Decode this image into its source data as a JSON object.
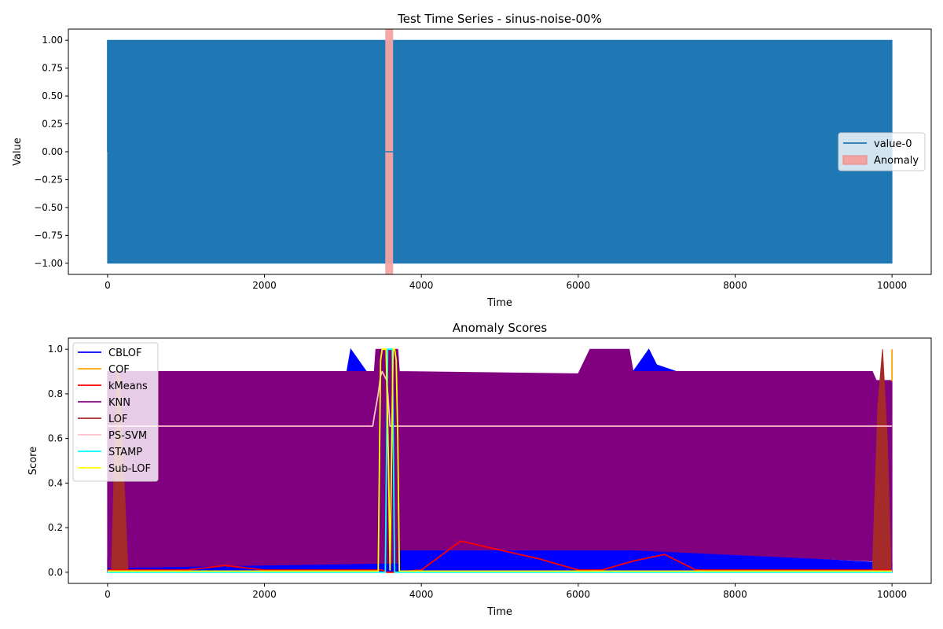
{
  "chart_data": [
    {
      "type": "line",
      "title": "Test Time Series - sinus-noise-00%",
      "xlabel": "Time",
      "ylabel": "Value",
      "xlim": [
        -500,
        10500
      ],
      "ylim": [
        -1.1,
        1.1
      ],
      "xticks": [
        0,
        2000,
        4000,
        6000,
        8000,
        10000
      ],
      "xtick_labels": [
        "0",
        "2000",
        "4000",
        "6000",
        "8000",
        "10000"
      ],
      "yticks": [
        -1.0,
        -0.75,
        -0.5,
        -0.25,
        0.0,
        0.25,
        0.5,
        0.75,
        1.0
      ],
      "ytick_labels": [
        "−1.00",
        "−0.75",
        "−0.50",
        "−0.25",
        "0.00",
        "0.25",
        "0.50",
        "0.75",
        "1.00"
      ],
      "legend_position": "center-right",
      "grid": false,
      "series": [
        {
          "name": "value-0",
          "color": "#1f77b4",
          "style": "dense oscillation between approx -1 and 1 (appears as filled band)",
          "x": [
            0,
            3540,
            3640,
            10000
          ],
          "upper": [
            1.0,
            1.0,
            1.0,
            1.0
          ],
          "lower": [
            -1.0,
            -1.0,
            -1.0,
            -1.0
          ],
          "flat_segment": {
            "x": [
              3540,
              3640
            ],
            "y": 0.0
          }
        }
      ],
      "shaded_regions": [
        {
          "name": "Anomaly",
          "color": "#f4a3a3",
          "x": [
            3540,
            3640
          ]
        }
      ]
    },
    {
      "type": "line",
      "title": "Anomaly Scores",
      "xlabel": "Time",
      "ylabel": "Score",
      "xlim": [
        -500,
        10500
      ],
      "ylim": [
        -0.05,
        1.05
      ],
      "xticks": [
        0,
        2000,
        4000,
        6000,
        8000,
        10000
      ],
      "xtick_labels": [
        "0",
        "2000",
        "4000",
        "6000",
        "8000",
        "10000"
      ],
      "yticks": [
        0.0,
        0.2,
        0.4,
        0.6,
        0.8,
        1.0
      ],
      "ytick_labels": [
        "0.0",
        "0.2",
        "0.4",
        "0.6",
        "0.8",
        "1.0"
      ],
      "legend_position": "top-left",
      "grid": false,
      "series": [
        {
          "name": "CBLOF",
          "color": "#0000ff",
          "bands": [
            {
              "x": [
                0,
                1000,
                2000,
                3000,
                3500,
                3550,
                3650,
                4000,
                5000,
                6000,
                7000,
                8000,
                9000,
                10000
              ],
              "upper": [
                0.06,
                0.03,
                0.06,
                0.08,
                0.11,
                0.11,
                0.11,
                0.11,
                0.14,
                0.12,
                0.11,
                0.09,
                0.06,
                0.04
              ],
              "lower": [
                0.0,
                0.0,
                0.0,
                0.0,
                0.0,
                0.0,
                0.0,
                0.0,
                0.0,
                0.0,
                0.0,
                0.0,
                0.0,
                0.0
              ]
            },
            {
              "x": [
                2750,
                3050,
                3100,
                3300,
                3400
              ],
              "upper": [
                0.9,
                0.9,
                1.0,
                0.9,
                0.9
              ],
              "lower": [
                0.9,
                0.9,
                0.9,
                0.9,
                0.9
              ]
            },
            {
              "x": [
                6600,
                6700,
                6900,
                7000,
                7250
              ],
              "upper": [
                0.9,
                0.9,
                1.0,
                0.93,
                0.9
              ],
              "lower": [
                0.9,
                0.9,
                0.9,
                0.9,
                0.9
              ]
            }
          ]
        },
        {
          "name": "COF",
          "color": "#ffa500",
          "x": [
            9990,
            10000,
            10000
          ],
          "y": [
            0.86,
            0.86,
            1.0
          ]
        },
        {
          "name": "kMeans",
          "color": "#ff0000",
          "x": [
            0,
            500,
            1000,
            1500,
            2000,
            2500,
            3000,
            3500,
            3560,
            3600,
            3640,
            4000,
            4500,
            5000,
            5500,
            6000,
            6300,
            6700,
            7100,
            7500,
            8000,
            9000,
            10000
          ],
          "y": [
            0.01,
            0.01,
            0.01,
            0.03,
            0.01,
            0.01,
            0.01,
            0.01,
            0.0,
            0.0,
            0.0,
            0.01,
            0.14,
            0.1,
            0.06,
            0.01,
            0.01,
            0.05,
            0.08,
            0.01,
            0.01,
            0.01,
            0.01
          ]
        },
        {
          "name": "KNN",
          "color": "#800080",
          "bands": [
            {
              "x": [
                0,
                3400,
                3420,
                3700,
                3720,
                6000,
                6150,
                6650,
                6700,
                9750,
                9800,
                10000
              ],
              "upper": [
                0.9,
                0.9,
                1.0,
                1.0,
                0.9,
                0.89,
                1.0,
                1.0,
                0.9,
                0.9,
                0.86,
                0.86
              ],
              "lower": [
                0.02,
                0.04,
                0.04,
                0.04,
                0.1,
                0.1,
                0.1,
                0.1,
                0.1,
                0.05,
                0.02,
                0.02
              ]
            }
          ]
        },
        {
          "name": "LOF",
          "color": "#a52a2a",
          "bands": [
            {
              "x": [
                50,
                100,
                120,
                150,
                200,
                260
              ],
              "upper": [
                0.0,
                0.7,
                0.9,
                0.9,
                0.5,
                0.0
              ],
              "lower": [
                0.0,
                0.0,
                0.0,
                0.0,
                0.0,
                0.0
              ]
            },
            {
              "x": [
                9750,
                9820,
                9880,
                9940,
                9990
              ],
              "upper": [
                0.0,
                0.75,
                1.0,
                0.6,
                0.0
              ],
              "lower": [
                0.0,
                0.0,
                0.0,
                0.0,
                0.0
              ]
            }
          ]
        },
        {
          "name": "PS-SVM",
          "color": "#ffc0cb",
          "x": [
            0,
            3380,
            3400,
            3450,
            3480,
            3500,
            3560,
            3600,
            3620,
            3640,
            10000
          ],
          "y": [
            0.655,
            0.655,
            0.7,
            0.8,
            0.88,
            0.9,
            0.86,
            0.655,
            0.655,
            0.655,
            0.655
          ]
        },
        {
          "name": "STAMP",
          "color": "#00ffff",
          "x": [
            0,
            3500,
            3540,
            3570,
            3600,
            3630,
            3660,
            3700,
            10000
          ],
          "y": [
            0.0,
            0.0,
            0.0,
            1.0,
            1.0,
            1.0,
            0.0,
            0.0,
            0.0
          ]
        },
        {
          "name": "Sub-LOF",
          "color": "#ffff00",
          "x": [
            0,
            3450,
            3480,
            3500,
            3550,
            3580,
            3600,
            3640,
            3660,
            3680,
            3700,
            3720,
            10000
          ],
          "y": [
            0.005,
            0.005,
            0.95,
            1.0,
            1.0,
            0.5,
            0.01,
            1.0,
            1.0,
            0.95,
            0.6,
            0.005,
            0.005
          ]
        }
      ]
    }
  ]
}
